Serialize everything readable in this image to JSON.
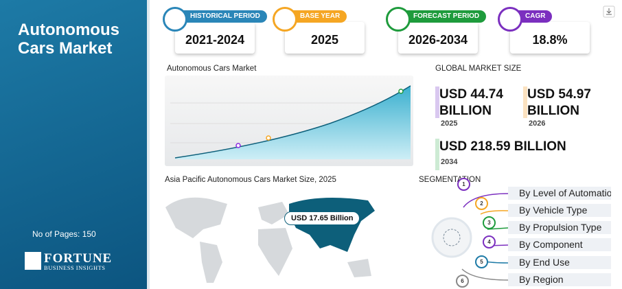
{
  "sidebar": {
    "title": "Autonomous Cars Market",
    "pages": "No of Pages: 150",
    "logo_name": "FORTUNE",
    "logo_sub": "BUSINESS INSIGHTS"
  },
  "cards": [
    {
      "label": "HISTORICAL PERIOD",
      "value": "2021-2024"
    },
    {
      "label": "BASE YEAR",
      "value": "2025"
    },
    {
      "label": "FORECAST PERIOD",
      "value": "2026-2034"
    },
    {
      "label": "CAGR",
      "value": "18.8%"
    }
  ],
  "trend": {
    "title": "Autonomous Cars Market"
  },
  "global": {
    "title": "GLOBAL MARKET SIZE",
    "items": [
      {
        "value": "USD 44.74 BILLION",
        "year": "2025"
      },
      {
        "value": "USD 54.97 BILLION",
        "year": "2026"
      },
      {
        "value": "USD 218.59 BILLION",
        "year": "2034"
      }
    ]
  },
  "regional": {
    "title": "Asia Pacific Autonomous Cars Market Size, 2025",
    "value": "USD 17.65 Billion"
  },
  "segmentation": {
    "title": "SEGMENTATION",
    "items": [
      {
        "number": "1",
        "label": "By Level of Automatio"
      },
      {
        "number": "2",
        "label": "By Vehicle Type"
      },
      {
        "number": "3",
        "label": "By Propulsion Type"
      },
      {
        "number": "4",
        "label": "By Component"
      },
      {
        "number": "5",
        "label": "By End Use"
      },
      {
        "number": "6",
        "label": "By Region"
      }
    ]
  }
}
